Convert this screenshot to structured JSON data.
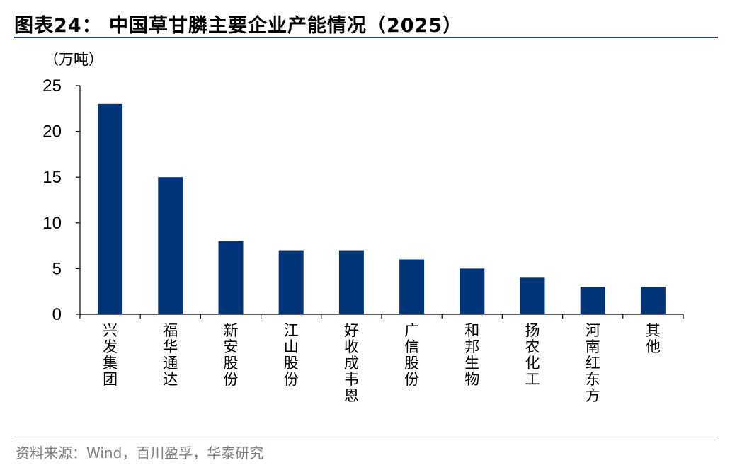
{
  "header": {
    "title": "图表24：  中国草甘膦主要企业产能情况（2025）"
  },
  "footer": {
    "source": "资料来源：Wind，百川盈孚，华泰研究"
  },
  "colors": {
    "bar": "#003478",
    "axis": "#000000"
  },
  "chart_data": {
    "type": "bar",
    "title": "中国草甘膦主要企业产能情况（2025）",
    "ylabel": "（万吨）",
    "xlabel": "",
    "categories": [
      "兴发集团",
      "福华通达",
      "新安股份",
      "江山股份",
      "好收成韦恩",
      "广信股份",
      "和邦生物",
      "扬农化工",
      "河南红东方",
      "其他"
    ],
    "values": [
      23,
      15,
      8,
      7,
      7,
      6,
      5,
      4,
      3,
      3
    ],
    "ylim": [
      0,
      25
    ],
    "yticks": [
      0,
      5,
      10,
      15,
      20,
      25
    ],
    "grid": false,
    "legend": "none"
  }
}
